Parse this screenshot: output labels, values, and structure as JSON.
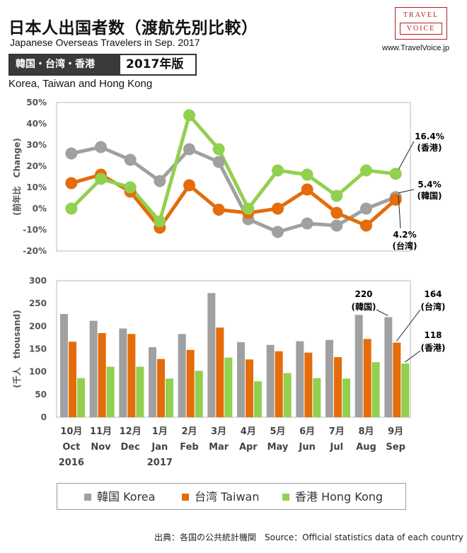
{
  "header": {
    "title": "日本人出国者数（渡航先別比較）",
    "subtitle": "Japanese Overseas Travelers in Sep. 2017",
    "logo_line1": "TRAVEL",
    "logo_line2": "VOICE",
    "site": "www.TravelVoice.jp",
    "badge_label": "韓国・台湾・香港",
    "badge_year": "2017年版",
    "region": "Korea, Taiwan and Hong Kong"
  },
  "colors": {
    "korea": "#a0a0a0",
    "taiwan": "#e46c0a",
    "hongkong": "#92d050"
  },
  "chart_data": [
    {
      "type": "line",
      "ylabel": "(前年比　Change)",
      "ylim": [
        -20,
        50
      ],
      "yticks": [
        "50%",
        "40%",
        "30%",
        "20%",
        "10%",
        "0%",
        "-10%",
        "-20%"
      ],
      "grid": false,
      "series": [
        {
          "name": "韓国 Korea",
          "values": [
            26,
            29,
            23,
            13,
            28,
            22,
            -5,
            -11,
            -7,
            -8,
            0,
            5.4
          ]
        },
        {
          "name": "台湾 Taiwan",
          "values": [
            12,
            16,
            8,
            -9,
            11,
            -0.5,
            -2,
            0,
            9,
            -2,
            -8,
            4.2
          ]
        },
        {
          "name": "香港 Hong Kong",
          "values": [
            0,
            14,
            10,
            -6,
            44,
            28,
            0,
            18,
            16,
            6,
            18,
            16.4
          ]
        }
      ],
      "annotations": [
        {
          "value": "16.4%",
          "label": "(香港)"
        },
        {
          "value": "5.4%",
          "label": "(韓国)"
        },
        {
          "value": "4.2%",
          "label": "(台湾)"
        }
      ]
    },
    {
      "type": "bar",
      "ylabel": "(千人　thousand)",
      "ylim": [
        0,
        300
      ],
      "yticks": [
        "300",
        "250",
        "200",
        "150",
        "100",
        "50",
        "0"
      ],
      "grid": false,
      "categories": [
        {
          "month": "10月",
          "en": "Oct",
          "year": "2016"
        },
        {
          "month": "11月",
          "en": "Nov",
          "year": ""
        },
        {
          "month": "12月",
          "en": "Dec",
          "year": ""
        },
        {
          "month": "1月",
          "en": "Jan",
          "year": "2017"
        },
        {
          "month": "2月",
          "en": "Feb",
          "year": ""
        },
        {
          "month": "3月",
          "en": "Mar",
          "year": ""
        },
        {
          "month": "4月",
          "en": "Apr",
          "year": ""
        },
        {
          "month": "5月",
          "en": "May",
          "year": ""
        },
        {
          "month": "6月",
          "en": "Jun",
          "year": ""
        },
        {
          "month": "7月",
          "en": "Jul",
          "year": ""
        },
        {
          "month": "8月",
          "en": "Aug",
          "year": ""
        },
        {
          "month": "9月",
          "en": "Sep",
          "year": ""
        }
      ],
      "series": [
        {
          "name": "韓国 Korea",
          "values": [
            227,
            212,
            195,
            154,
            183,
            273,
            165,
            159,
            167,
            170,
            225,
            220
          ]
        },
        {
          "name": "台湾 Taiwan",
          "values": [
            166,
            185,
            183,
            128,
            148,
            197,
            127,
            145,
            142,
            132,
            172,
            164
          ]
        },
        {
          "name": "香港 Hong Kong",
          "values": [
            86,
            111,
            111,
            85,
            102,
            131,
            79,
            97,
            86,
            85,
            121,
            118
          ]
        }
      ],
      "annotations": [
        {
          "value": "220",
          "label": "(韓国)"
        },
        {
          "value": "164",
          "label": "(台湾)"
        },
        {
          "value": "118",
          "label": "(香港)"
        }
      ]
    }
  ],
  "legend": {
    "items": [
      {
        "label": "韓国 Korea"
      },
      {
        "label": "台湾 Taiwan"
      },
      {
        "label": "香港 Hong Kong"
      }
    ]
  },
  "footer": {
    "source": "出典：各国の公共統計機関　Source：Official statistics data of each country"
  }
}
